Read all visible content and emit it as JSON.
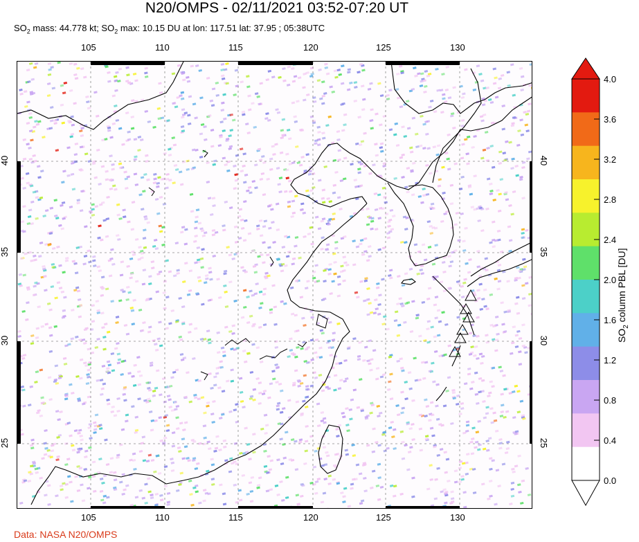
{
  "title": "N20/OMPS - 02/11/2021 03:52-07:20 UT",
  "subtitle": {
    "part1": "SO",
    "sub1": "2",
    "part2": " mass: 44.778 kt; SO",
    "sub2": "2",
    "part3": " max: 10.15 DU at lon: 117.51 lat: 37.95 ; 05:38UTC"
  },
  "map": {
    "lon_ticks": [
      "105",
      "110",
      "115",
      "120",
      "125",
      "130"
    ],
    "lat_ticks": [
      "40",
      "35",
      "30",
      "25"
    ],
    "lon_range": [
      100,
      135
    ],
    "lat_range": [
      20,
      44.5
    ],
    "volcano_markers": 6
  },
  "colorbar": {
    "label": "SO2 column PBL [DU]",
    "label_prefix": "SO",
    "label_sub": "2",
    "label_suffix": " column PBL [DU]",
    "ticks": [
      "4.0",
      "3.6",
      "3.2",
      "2.8",
      "2.4",
      "2.0",
      "1.6",
      "1.2",
      "0.8",
      "0.4",
      "0.0"
    ],
    "range": [
      0.0,
      4.0
    ],
    "colors": [
      "#ffffff",
      "#f2c6f2",
      "#c9a6f2",
      "#8d8de8",
      "#61b0e8",
      "#4cd0c8",
      "#5fe06a",
      "#b8ec30",
      "#f7f22c",
      "#f7b51d",
      "#f16a18",
      "#e31a10"
    ]
  },
  "credit": "Data: NASA N20/OMPS"
}
